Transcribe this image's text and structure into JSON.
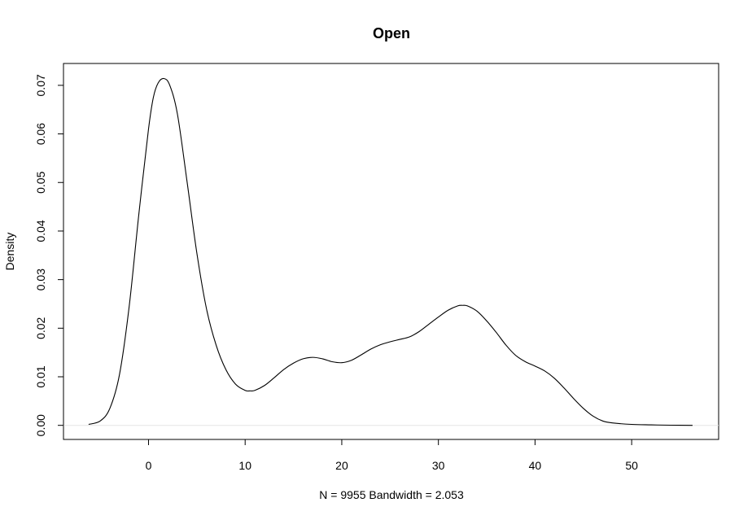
{
  "chart_data": {
    "type": "line",
    "title": "Open",
    "xlabel": "N = 9955   Bandwidth = 2.053",
    "ylabel": "Density",
    "xlim": [
      -8.8,
      59
    ],
    "ylim": [
      -0.0029,
      0.0745
    ],
    "xticks": [
      0,
      10,
      20,
      30,
      40,
      50
    ],
    "xtick_labels": [
      "0",
      "10",
      "20",
      "30",
      "40",
      "50"
    ],
    "yticks": [
      0,
      0.01,
      0.02,
      0.03,
      0.04,
      0.05,
      0.06,
      0.07
    ],
    "ytick_labels": [
      "0.00",
      "0.01",
      "0.02",
      "0.03",
      "0.04",
      "0.05",
      "0.06",
      "0.07"
    ],
    "grid": false,
    "legend": "none",
    "baseline": 0,
    "series": [
      {
        "x": [
          -6.2,
          -5,
          -4,
          -3,
          -2,
          -1,
          0,
          0.5,
          1,
          1.6,
          2.2,
          3,
          4,
          5,
          6,
          7,
          8,
          9,
          10,
          10.5,
          11,
          12,
          13,
          14,
          15,
          16,
          17,
          18,
          19,
          20,
          21,
          22,
          23,
          24,
          25,
          26,
          27,
          28,
          29,
          30,
          31,
          32,
          32.5,
          33,
          34,
          35,
          36,
          37,
          38,
          39,
          40,
          41,
          42,
          43,
          44,
          45,
          46,
          47,
          48,
          50,
          52,
          54,
          56.3
        ],
        "y": [
          0.0002,
          0.0009,
          0.0035,
          0.0105,
          0.0245,
          0.0435,
          0.061,
          0.0675,
          0.0705,
          0.0714,
          0.07,
          0.064,
          0.05,
          0.0355,
          0.024,
          0.0165,
          0.0115,
          0.0085,
          0.0072,
          0.0071,
          0.0072,
          0.0082,
          0.0098,
          0.0115,
          0.0128,
          0.0137,
          0.014,
          0.0137,
          0.0131,
          0.0129,
          0.0134,
          0.0145,
          0.0157,
          0.0166,
          0.0172,
          0.0177,
          0.0182,
          0.0193,
          0.0208,
          0.0223,
          0.0237,
          0.0246,
          0.0247,
          0.0246,
          0.0235,
          0.0215,
          0.0191,
          0.0165,
          0.0144,
          0.0131,
          0.0122,
          0.0112,
          0.0097,
          0.0077,
          0.0055,
          0.0035,
          0.0019,
          0.0009,
          0.0005,
          0.0002,
          0.0001,
          3e-05,
          0
        ]
      }
    ]
  }
}
